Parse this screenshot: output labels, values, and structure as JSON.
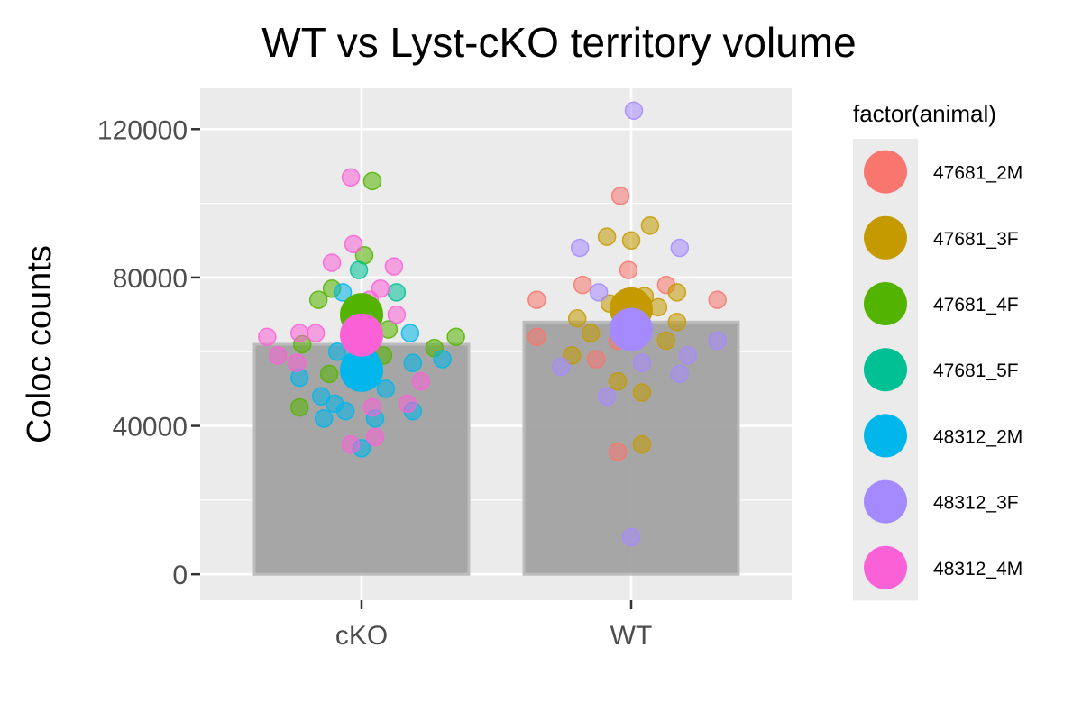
{
  "chart_data": {
    "type": "bar",
    "title": "WT vs Lyst-cKO territory volume",
    "xlabel": "",
    "ylabel": "Coloc counts",
    "categories": [
      "cKO",
      "WT"
    ],
    "values": [
      62000,
      68000
    ],
    "ylim": [
      -7000,
      131000
    ],
    "yticks": [
      0,
      40000,
      80000,
      120000
    ],
    "ytick_labels": [
      "0",
      "40000",
      "80000",
      "120000"
    ],
    "grid": true,
    "legend": {
      "title": "factor(animal)",
      "position": "right",
      "entries": [
        "47681_2M",
        "47681_3F",
        "47681_4F",
        "47681_5F",
        "48312_2M",
        "48312_3F",
        "48312_4M"
      ]
    },
    "series_colors": {
      "47681_2M": "#F8766D",
      "47681_3F": "#C49A00",
      "47681_4F": "#53B400",
      "47681_5F": "#00C094",
      "48312_2M": "#00B6EB",
      "48312_3F": "#A58AFF",
      "48312_4M": "#FB61D7"
    },
    "bar_color": "#a0a0a0",
    "points": [
      {
        "cat": "cKO",
        "animal": "47681_4F",
        "y": 106000,
        "j": 0.04
      },
      {
        "cat": "cKO",
        "animal": "47681_4F",
        "y": 86000,
        "j": 0.01
      },
      {
        "cat": "cKO",
        "animal": "47681_4F",
        "y": 77000,
        "j": -0.11
      },
      {
        "cat": "cKO",
        "animal": "47681_4F",
        "y": 74000,
        "j": -0.16
      },
      {
        "cat": "cKO",
        "animal": "47681_4F",
        "y": 66000,
        "j": 0.1
      },
      {
        "cat": "cKO",
        "animal": "47681_4F",
        "y": 64000,
        "j": 0.35
      },
      {
        "cat": "cKO",
        "animal": "47681_4F",
        "y": 62000,
        "j": -0.22
      },
      {
        "cat": "cKO",
        "animal": "47681_4F",
        "y": 61000,
        "j": 0.27
      },
      {
        "cat": "cKO",
        "animal": "47681_4F",
        "y": 59000,
        "j": 0.08
      },
      {
        "cat": "cKO",
        "animal": "47681_4F",
        "y": 54000,
        "j": -0.12
      },
      {
        "cat": "cKO",
        "animal": "47681_4F",
        "y": 45000,
        "j": -0.23
      },
      {
        "cat": "cKO",
        "animal": "47681_5F",
        "y": 82000,
        "j": -0.01
      },
      {
        "cat": "cKO",
        "animal": "47681_5F",
        "y": 76000,
        "j": 0.13
      },
      {
        "cat": "cKO",
        "animal": "48312_2M",
        "y": 76000,
        "j": -0.07
      },
      {
        "cat": "cKO",
        "animal": "48312_2M",
        "y": 65000,
        "j": 0.18
      },
      {
        "cat": "cKO",
        "animal": "48312_2M",
        "y": 60000,
        "j": -0.09
      },
      {
        "cat": "cKO",
        "animal": "48312_2M",
        "y": 58000,
        "j": 0.03
      },
      {
        "cat": "cKO",
        "animal": "48312_2M",
        "y": 58000,
        "j": 0.3
      },
      {
        "cat": "cKO",
        "animal": "48312_2M",
        "y": 57000,
        "j": 0.19
      },
      {
        "cat": "cKO",
        "animal": "48312_2M",
        "y": 53000,
        "j": -0.23
      },
      {
        "cat": "cKO",
        "animal": "48312_2M",
        "y": 50000,
        "j": 0.09
      },
      {
        "cat": "cKO",
        "animal": "48312_2M",
        "y": 48000,
        "j": -0.15
      },
      {
        "cat": "cKO",
        "animal": "48312_2M",
        "y": 46000,
        "j": -0.1
      },
      {
        "cat": "cKO",
        "animal": "48312_2M",
        "y": 44000,
        "j": -0.06
      },
      {
        "cat": "cKO",
        "animal": "48312_2M",
        "y": 44000,
        "j": 0.19
      },
      {
        "cat": "cKO",
        "animal": "48312_2M",
        "y": 42000,
        "j": -0.14
      },
      {
        "cat": "cKO",
        "animal": "48312_2M",
        "y": 42000,
        "j": 0.05
      },
      {
        "cat": "cKO",
        "animal": "48312_2M",
        "y": 34000,
        "j": 0.0
      },
      {
        "cat": "cKO",
        "animal": "48312_4M",
        "y": 107000,
        "j": -0.04
      },
      {
        "cat": "cKO",
        "animal": "48312_4M",
        "y": 89000,
        "j": -0.03
      },
      {
        "cat": "cKO",
        "animal": "48312_4M",
        "y": 84000,
        "j": -0.11
      },
      {
        "cat": "cKO",
        "animal": "48312_4M",
        "y": 83000,
        "j": 0.12
      },
      {
        "cat": "cKO",
        "animal": "48312_4M",
        "y": 77000,
        "j": 0.07
      },
      {
        "cat": "cKO",
        "animal": "48312_4M",
        "y": 74000,
        "j": 0.03
      },
      {
        "cat": "cKO",
        "animal": "48312_4M",
        "y": 70000,
        "j": 0.13
      },
      {
        "cat": "cKO",
        "animal": "48312_4M",
        "y": 65000,
        "j": -0.23
      },
      {
        "cat": "cKO",
        "animal": "48312_4M",
        "y": 65000,
        "j": -0.17
      },
      {
        "cat": "cKO",
        "animal": "48312_4M",
        "y": 64000,
        "j": -0.35
      },
      {
        "cat": "cKO",
        "animal": "48312_4M",
        "y": 59000,
        "j": -0.31
      },
      {
        "cat": "cKO",
        "animal": "48312_4M",
        "y": 57000,
        "j": -0.24
      },
      {
        "cat": "cKO",
        "animal": "48312_4M",
        "y": 52000,
        "j": 0.22
      },
      {
        "cat": "cKO",
        "animal": "48312_4M",
        "y": 46000,
        "j": 0.17
      },
      {
        "cat": "cKO",
        "animal": "48312_4M",
        "y": 45000,
        "j": 0.04
      },
      {
        "cat": "cKO",
        "animal": "48312_4M",
        "y": 37000,
        "j": 0.05
      },
      {
        "cat": "cKO",
        "animal": "48312_4M",
        "y": 35000,
        "j": -0.04
      },
      {
        "cat": "WT",
        "animal": "47681_2M",
        "y": 102000,
        "j": -0.04
      },
      {
        "cat": "WT",
        "animal": "47681_2M",
        "y": 82000,
        "j": -0.01
      },
      {
        "cat": "WT",
        "animal": "47681_2M",
        "y": 78000,
        "j": -0.18
      },
      {
        "cat": "WT",
        "animal": "47681_2M",
        "y": 78000,
        "j": 0.13
      },
      {
        "cat": "WT",
        "animal": "47681_2M",
        "y": 74000,
        "j": -0.35
      },
      {
        "cat": "WT",
        "animal": "47681_2M",
        "y": 74000,
        "j": 0.32
      },
      {
        "cat": "WT",
        "animal": "47681_2M",
        "y": 64000,
        "j": -0.35
      },
      {
        "cat": "WT",
        "animal": "47681_2M",
        "y": 58000,
        "j": -0.13
      },
      {
        "cat": "WT",
        "animal": "47681_2M",
        "y": 63000,
        "j": -0.05
      },
      {
        "cat": "WT",
        "animal": "47681_3F",
        "y": 94000,
        "j": 0.07
      },
      {
        "cat": "WT",
        "animal": "47681_3F",
        "y": 91000,
        "j": -0.09
      },
      {
        "cat": "WT",
        "animal": "47681_3F",
        "y": 90000,
        "j": 0.0
      },
      {
        "cat": "WT",
        "animal": "47681_3F",
        "y": 76000,
        "j": 0.17
      },
      {
        "cat": "WT",
        "animal": "47681_3F",
        "y": 75000,
        "j": 0.05
      },
      {
        "cat": "WT",
        "animal": "47681_3F",
        "y": 72000,
        "j": 0.1
      },
      {
        "cat": "WT",
        "animal": "47681_3F",
        "y": 73000,
        "j": -0.08
      },
      {
        "cat": "WT",
        "animal": "47681_3F",
        "y": 69000,
        "j": -0.2
      },
      {
        "cat": "WT",
        "animal": "47681_3F",
        "y": 68000,
        "j": 0.17
      },
      {
        "cat": "WT",
        "animal": "47681_3F",
        "y": 65000,
        "j": -0.15
      },
      {
        "cat": "WT",
        "animal": "47681_3F",
        "y": 63000,
        "j": 0.13
      },
      {
        "cat": "WT",
        "animal": "47681_3F",
        "y": 59000,
        "j": -0.22
      },
      {
        "cat": "WT",
        "animal": "47681_3F",
        "y": 52000,
        "j": -0.05
      },
      {
        "cat": "WT",
        "animal": "47681_3F",
        "y": 49000,
        "j": 0.04
      },
      {
        "cat": "WT",
        "animal": "47681_3F",
        "y": 35000,
        "j": 0.04
      },
      {
        "cat": "WT",
        "animal": "47681_2M",
        "y": 33000,
        "j": -0.05
      },
      {
        "cat": "WT",
        "animal": "48312_3F",
        "y": 125000,
        "j": 0.01
      },
      {
        "cat": "WT",
        "animal": "48312_3F",
        "y": 88000,
        "j": -0.19
      },
      {
        "cat": "WT",
        "animal": "48312_3F",
        "y": 88000,
        "j": 0.18
      },
      {
        "cat": "WT",
        "animal": "48312_3F",
        "y": 76000,
        "j": -0.12
      },
      {
        "cat": "WT",
        "animal": "48312_3F",
        "y": 63000,
        "j": 0.32
      },
      {
        "cat": "WT",
        "animal": "48312_3F",
        "y": 59000,
        "j": 0.21
      },
      {
        "cat": "WT",
        "animal": "48312_3F",
        "y": 57000,
        "j": 0.04
      },
      {
        "cat": "WT",
        "animal": "48312_3F",
        "y": 56000,
        "j": -0.26
      },
      {
        "cat": "WT",
        "animal": "48312_3F",
        "y": 54000,
        "j": 0.18
      },
      {
        "cat": "WT",
        "animal": "48312_3F",
        "y": 48000,
        "j": -0.09
      },
      {
        "cat": "WT",
        "animal": "48312_3F",
        "y": 10000,
        "j": 0.0
      }
    ],
    "animal_means": [
      {
        "cat": "cKO",
        "animal": "47681_4F",
        "y": 70000
      },
      {
        "cat": "cKO",
        "animal": "48312_2M",
        "y": 55000
      },
      {
        "cat": "cKO",
        "animal": "48312_4M",
        "y": 64500
      },
      {
        "cat": "WT",
        "animal": "47681_3F",
        "y": 71500
      },
      {
        "cat": "WT",
        "animal": "48312_3F",
        "y": 66000
      }
    ]
  }
}
